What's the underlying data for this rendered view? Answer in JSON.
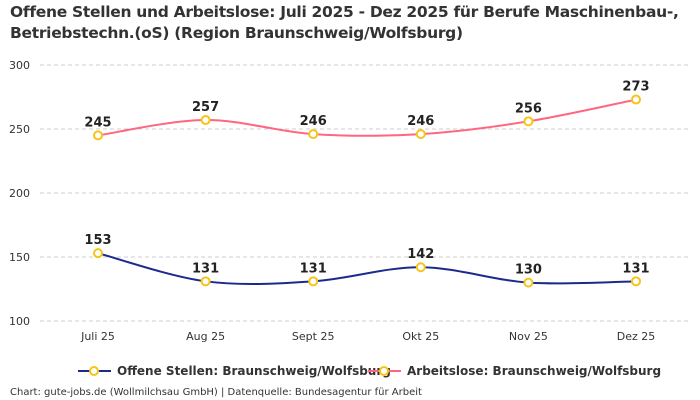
{
  "chart_data": {
    "type": "line",
    "title": "Offene Stellen und Arbeitslose: Juli 2025 - Dez 2025 für Berufe Maschinenbau-, Betriebstechn.(oS) (Region Braunschweig/Wolfsburg)",
    "categories": [
      "Juli 25",
      "Aug 25",
      "Sept 25",
      "Okt 25",
      "Nov 25",
      "Dez 25"
    ],
    "ylim": [
      100,
      300
    ],
    "yticks": [
      100,
      150,
      200,
      250,
      300
    ],
    "grid": true,
    "legend_position": "bottom",
    "series": [
      {
        "name": "Offene Stellen: Braunschweig/Wolfsburg",
        "values": [
          153,
          131,
          131,
          142,
          130,
          131
        ],
        "color": "#1a2b8c"
      },
      {
        "name": "Arbeitslose: Braunschweig/Wolfsburg",
        "values": [
          245,
          257,
          246,
          246,
          256,
          273
        ],
        "color": "#ff6680"
      }
    ],
    "marker_color": "#f5c518",
    "source": "Chart: gute-jobs.de (Wollmilchsau GmbH) | Datenquelle: Bundesagentur für Arbeit"
  }
}
